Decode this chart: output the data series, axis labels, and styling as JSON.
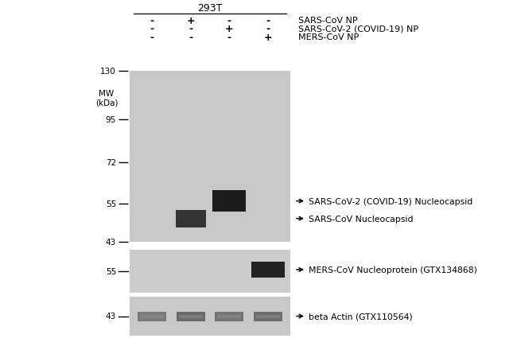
{
  "title": "293T",
  "bg_color": "#ffffff",
  "lane_labels_row1": [
    "-",
    "+",
    "-",
    "-"
  ],
  "lane_labels_row2": [
    "-",
    "-",
    "+",
    "-"
  ],
  "lane_labels_row3": [
    "-",
    "-",
    "-",
    "+"
  ],
  "row_labels": [
    "SARS-CoV NP",
    "SARS-CoV-2 (COVID-19) NP",
    "MERS-CoV NP"
  ],
  "mw_markers_p1": [
    130,
    95,
    72,
    55,
    43
  ],
  "mw_label": "MW\n(kDa)",
  "panel1_bg": "#c8c8c8",
  "panel2_bg": "#cccccc",
  "panel3_bg": "#c8c8c8",
  "band_dark": "#222222",
  "band_sars": "#3a3a3a",
  "band_actin": "#6a6a6a",
  "ann_sars2": "SARS-CoV-2 (COVID-19) Nucleocapsid",
  "ann_sars": "SARS-CoV Nucleocapsid",
  "ann_mers": "MERS-CoV Nucleoprotein (GTX134868)",
  "ann_actin": "beta Actin (GTX110564)"
}
